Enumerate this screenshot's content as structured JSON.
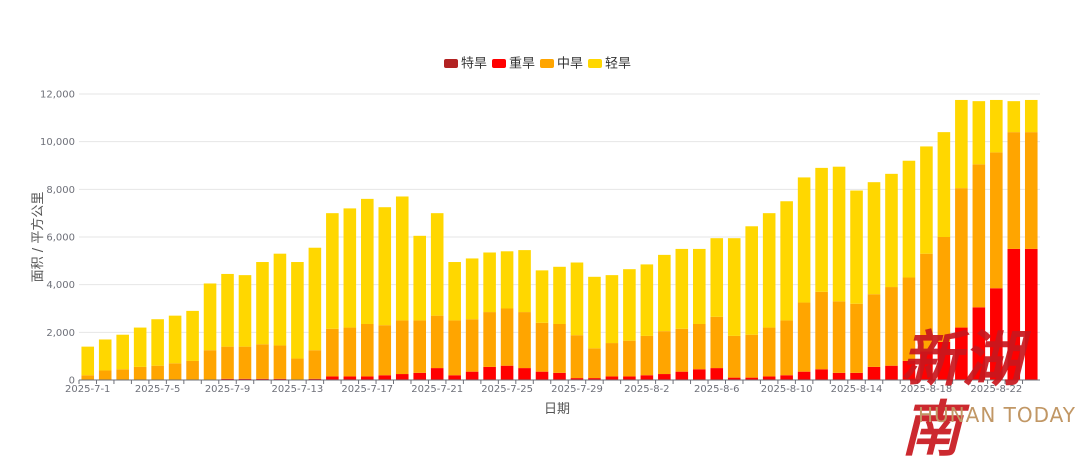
{
  "chart_data": {
    "type": "bar",
    "stacked": true,
    "xlabel": "日期",
    "ylabel": "面积 / 平方公里",
    "ylim": [
      0,
      12000
    ],
    "yticks": [
      0,
      2000,
      4000,
      6000,
      8000,
      10000,
      12000
    ],
    "y_tick_labels": [
      "0",
      "2,000",
      "4,000",
      "6,000",
      "8,000",
      "10,000",
      "12,000"
    ],
    "grid": true,
    "legend_position": "top-center",
    "categories": [
      "2025-7-1",
      "2025-7-2",
      "2025-7-3",
      "2025-7-4",
      "2025-7-5",
      "2025-7-6",
      "2025-7-7",
      "2025-7-8",
      "2025-7-9",
      "2025-7-10",
      "2025-7-11",
      "2025-7-12",
      "2025-7-13",
      "2025-7-14",
      "2025-7-15",
      "2025-7-16",
      "2025-7-17",
      "2025-7-18",
      "2025-7-19",
      "2025-7-20",
      "2025-7-21",
      "2025-7-22",
      "2025-7-23",
      "2025-7-24",
      "2025-7-25",
      "2025-7-26",
      "2025-7-27",
      "2025-7-28",
      "2025-7-29",
      "2025-7-30",
      "2025-7-31",
      "2025-8-1",
      "2025-8-2",
      "2025-8-3",
      "2025-8-4",
      "2025-8-5",
      "2025-8-6",
      "2025-8-7",
      "2025-8-8",
      "2025-8-9",
      "2025-8-10",
      "2025-8-11",
      "2025-8-12",
      "2025-8-13",
      "2025-8-14",
      "2025-8-15",
      "2025-8-16",
      "2025-8-17",
      "2025-8-18",
      "2025-8-19",
      "2025-8-20",
      "2025-8-21",
      "2025-8-22",
      "2025-8-23",
      "2025-8-24"
    ],
    "x_tick_labels": [
      "2025-7-1",
      "2025-7-5",
      "2025-7-9",
      "2025-7-13",
      "2025-7-17",
      "2025-7-21",
      "2025-7-25",
      "2025-7-29",
      "2025-8-2",
      "2025-8-6",
      "2025-8-10",
      "2025-8-14",
      "2025-8-18",
      "2025-8-22"
    ],
    "series": [
      {
        "name": "特旱",
        "color": "#b22222",
        "values": [
          0,
          0,
          0,
          0,
          0,
          0,
          0,
          0,
          0,
          0,
          0,
          0,
          0,
          0,
          0,
          0,
          0,
          0,
          0,
          0,
          0,
          0,
          0,
          0,
          0,
          0,
          0,
          0,
          0,
          0,
          0,
          0,
          0,
          0,
          0,
          0,
          0,
          0,
          0,
          0,
          0,
          0,
          0,
          0,
          0,
          0,
          0,
          0,
          0,
          0,
          0,
          0,
          0,
          0,
          0
        ]
      },
      {
        "name": "重旱",
        "color": "#ff0000",
        "values": [
          0,
          0,
          0,
          0,
          0,
          0,
          0,
          0,
          50,
          50,
          50,
          50,
          0,
          50,
          150,
          150,
          150,
          200,
          250,
          300,
          500,
          200,
          350,
          550,
          600,
          500,
          350,
          300,
          80,
          80,
          150,
          150,
          200,
          250,
          350,
          450,
          500,
          100,
          100,
          150,
          200,
          350,
          450,
          300,
          300,
          550,
          600,
          800,
          1200,
          1600,
          2200,
          3050,
          3850,
          5500,
          5500
        ]
      },
      {
        "name": "中旱",
        "color": "#ffa500",
        "values": [
          200,
          400,
          450,
          550,
          600,
          700,
          800,
          1250,
          1350,
          1350,
          1450,
          1400,
          900,
          1200,
          2000,
          2050,
          2200,
          2100,
          2250,
          2200,
          2200,
          2300,
          2200,
          2300,
          2400,
          2350,
          2050,
          2050,
          1800,
          1250,
          1400,
          1500,
          1650,
          1800,
          1800,
          1900,
          2150,
          1750,
          1800,
          2050,
          2300,
          2900,
          3250,
          3000,
          2900,
          3050,
          3300,
          3500,
          4100,
          4400,
          5850,
          6000,
          5700,
          4900,
          4900
        ]
      },
      {
        "name": "轻旱",
        "color": "#ffd700",
        "values": [
          1200,
          1300,
          1450,
          1650,
          1950,
          2000,
          2100,
          2800,
          3050,
          3000,
          3450,
          3850,
          4050,
          4300,
          4850,
          5000,
          5250,
          4950,
          5200,
          3550,
          4300,
          2450,
          2550,
          2500,
          2400,
          2600,
          2200,
          2400,
          3050,
          3000,
          2850,
          3000,
          3000,
          3200,
          3350,
          3150,
          3300,
          4100,
          4550,
          4800,
          5000,
          5250,
          5200,
          5650,
          4750,
          4700,
          4750,
          4900,
          4500,
          4400,
          3700,
          2650,
          2200,
          1300,
          1350
        ]
      }
    ]
  },
  "logo": {
    "cn": "新湖南",
    "en": "HUNAN TODAY"
  }
}
